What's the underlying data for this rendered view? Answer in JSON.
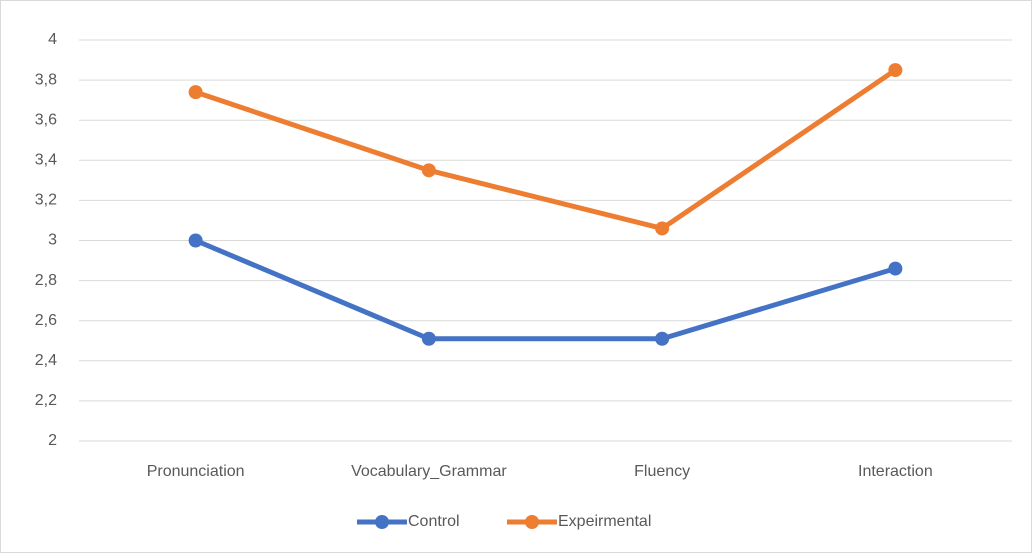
{
  "chart_data": {
    "type": "line",
    "categories": [
      "Pronunciation",
      "Vocabulary_Grammar",
      "Fluency",
      "Interaction"
    ],
    "series": [
      {
        "name": "Control",
        "color": "#4472c4",
        "values": [
          3.0,
          2.51,
          2.51,
          2.86
        ]
      },
      {
        "name": "Expeirmental",
        "color": "#ed7d31",
        "values": [
          3.74,
          3.35,
          3.06,
          3.85
        ]
      }
    ],
    "ylim": [
      2,
      4
    ],
    "yticks": [
      2,
      {
        "value": 2.2,
        "label": "2,2"
      },
      {
        "value": 2.4,
        "label": "2,4"
      },
      {
        "value": 2.6,
        "label": "2,6"
      },
      {
        "value": 2.8,
        "label": "2,8"
      },
      3,
      {
        "value": 3.2,
        "label": "3,2"
      },
      {
        "value": 3.4,
        "label": "3,4"
      },
      {
        "value": 3.6,
        "label": "3,6"
      },
      {
        "value": 3.8,
        "label": "3,8"
      },
      4
    ],
    "grid": true,
    "legend": "bottom"
  }
}
